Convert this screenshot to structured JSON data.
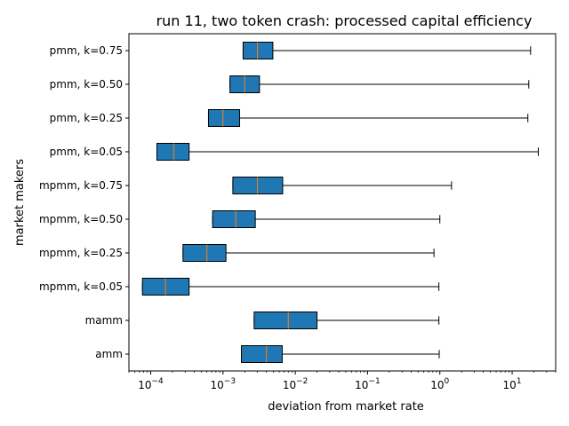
{
  "chart_data": {
    "type": "boxplot",
    "orientation": "horizontal",
    "title": "run 11, two token crash: processed capital efficiency",
    "xlabel": "deviation from market rate",
    "ylabel": "market makers",
    "x_scale": "log",
    "xlim": [
      5e-05,
      40
    ],
    "x_ticks": [
      0.0001,
      0.001,
      0.01,
      0.1,
      1,
      10
    ],
    "x_tick_labels": [
      "10^-4",
      "10^-3",
      "10^-2",
      "10^-1",
      "10^0",
      "10^1"
    ],
    "box_color": "#1f77b4",
    "median_color": "#ff7f0e",
    "categories": [
      "pmm, k=0.75",
      "pmm, k=0.50",
      "pmm, k=0.25",
      "pmm, k=0.05",
      "mpmm, k=0.75",
      "mpmm, k=0.50",
      "mpmm, k=0.25",
      "mpmm, k=0.05",
      "mamm",
      "amm"
    ],
    "boxes": [
      {
        "label": "pmm, k=0.75",
        "whislo": 0.0019,
        "q1": 0.0019,
        "med": 0.003,
        "q3": 0.0049,
        "whishi": 18
      },
      {
        "label": "pmm, k=0.50",
        "whislo": 0.00125,
        "q1": 0.00125,
        "med": 0.002,
        "q3": 0.0032,
        "whishi": 17
      },
      {
        "label": "pmm, k=0.25",
        "whislo": 0.00063,
        "q1": 0.00063,
        "med": 0.001,
        "q3": 0.0017,
        "whishi": 16.5
      },
      {
        "label": "pmm, k=0.05",
        "whislo": 0.000122,
        "q1": 0.000122,
        "med": 0.00021,
        "q3": 0.00034,
        "whishi": 23
      },
      {
        "label": "mpmm, k=0.75",
        "whislo": 0.00137,
        "q1": 0.00137,
        "med": 0.003,
        "q3": 0.0067,
        "whishi": 1.45
      },
      {
        "label": "mpmm, k=0.50",
        "whislo": 0.00072,
        "q1": 0.00072,
        "med": 0.0015,
        "q3": 0.0028,
        "whishi": 1.0
      },
      {
        "label": "mpmm, k=0.25",
        "whislo": 0.00028,
        "q1": 0.00028,
        "med": 0.0006,
        "q3": 0.0011,
        "whishi": 0.83
      },
      {
        "label": "mpmm, k=0.05",
        "whislo": 7.7e-05,
        "q1": 7.7e-05,
        "med": 0.00016,
        "q3": 0.00034,
        "whishi": 0.97
      },
      {
        "label": "mamm",
        "whislo": 0.0027,
        "q1": 0.0027,
        "med": 0.008,
        "q3": 0.02,
        "whishi": 0.97
      },
      {
        "label": "amm",
        "whislo": 0.0018,
        "q1": 0.0018,
        "med": 0.004,
        "q3": 0.0066,
        "whishi": 0.98
      }
    ]
  }
}
